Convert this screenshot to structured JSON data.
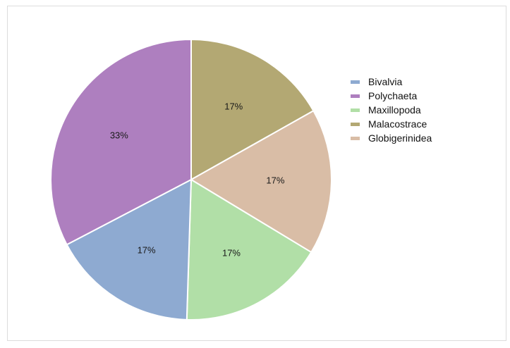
{
  "chart_data": {
    "type": "pie",
    "title": "",
    "slices": [
      {
        "label": "Malacostrace",
        "value": 17,
        "pct_label": "17%",
        "color": "#b3a873"
      },
      {
        "label": "Globigerinidea",
        "value": 17,
        "pct_label": "17%",
        "color": "#d9bda6"
      },
      {
        "label": "Maxillopoda",
        "value": 17,
        "pct_label": "17%",
        "color": "#b1dfa7"
      },
      {
        "label": "Bivalvia",
        "value": 17,
        "pct_label": "17%",
        "color": "#8eaad1"
      },
      {
        "label": "Polychaeta",
        "value": 33,
        "pct_label": "33%",
        "color": "#ae7fbf"
      }
    ],
    "legend": {
      "position": "right",
      "items": [
        {
          "label": "Bivalvia",
          "color": "#8eaad1"
        },
        {
          "label": "Polychaeta",
          "color": "#ae7fbf"
        },
        {
          "label": "Maxillopoda",
          "color": "#b1dfa7"
        },
        {
          "label": "Malacostrace",
          "color": "#b3a873"
        },
        {
          "label": "Globigerinidea",
          "color": "#d9bda6"
        }
      ]
    }
  }
}
